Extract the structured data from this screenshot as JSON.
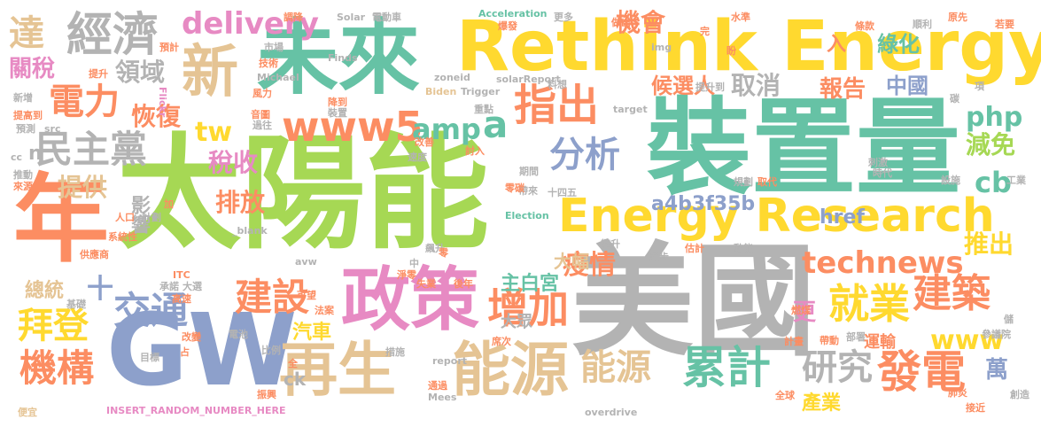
{
  "palette": {
    "green": "#a6d854",
    "teal": "#66c2a5",
    "orange": "#fc8d62",
    "blue": "#8da0cb",
    "pink": "#e78ac3",
    "yellow": "#ffd92f",
    "tan": "#e5c494",
    "gray": "#b3b3b3"
  },
  "words": [
    {
      "text": "太陽能",
      "color": "green"
    },
    {
      "text": "美國",
      "color": "gray"
    },
    {
      "text": "裝置量",
      "color": "teal"
    },
    {
      "text": "年",
      "color": "orange"
    },
    {
      "text": "GW",
      "color": "blue"
    },
    {
      "text": "未來",
      "color": "teal"
    },
    {
      "text": "Rethink Energy",
      "color": "yellow"
    },
    {
      "text": "政策",
      "color": "pink"
    },
    {
      "text": "新",
      "color": "tan"
    },
    {
      "text": "Energy Research",
      "color": "yellow"
    },
    {
      "text": "再生",
      "color": "tan"
    },
    {
      "text": "能源",
      "color": "tan"
    },
    {
      "text": "經濟",
      "color": "gray"
    },
    {
      "text": "指出",
      "color": "orange"
    },
    {
      "text": "增加",
      "color": "orange"
    },
    {
      "text": "累計",
      "color": "teal"
    },
    {
      "text": "發電",
      "color": "orange"
    },
    {
      "text": "就業",
      "color": "yellow"
    },
    {
      "text": "建築",
      "color": "orange"
    },
    {
      "text": "www5",
      "color": "orange"
    },
    {
      "text": "民主黨",
      "color": "gray"
    },
    {
      "text": "交通",
      "color": "blue"
    },
    {
      "text": "機構",
      "color": "orange"
    },
    {
      "text": "拜登",
      "color": "yellow"
    },
    {
      "text": "建設",
      "color": "orange"
    },
    {
      "text": "能源",
      "color": "tan"
    },
    {
      "text": "研究",
      "color": "gray"
    },
    {
      "text": "分析",
      "color": "blue"
    },
    {
      "text": "technews",
      "color": "orange"
    },
    {
      "text": "delivery",
      "color": "pink"
    },
    {
      "text": "達",
      "color": "tan"
    },
    {
      "text": "電力",
      "color": "orange"
    },
    {
      "text": "amp",
      "color": "teal"
    },
    {
      "text": "a",
      "color": "teal"
    },
    {
      "text": "php",
      "color": "teal"
    },
    {
      "text": "www",
      "color": "yellow"
    },
    {
      "text": "cb",
      "color": "teal"
    },
    {
      "text": "領域",
      "color": "gray"
    },
    {
      "text": "tw",
      "color": "yellow"
    },
    {
      "text": "稅收",
      "color": "pink"
    },
    {
      "text": "排放",
      "color": "orange"
    },
    {
      "text": "提供",
      "color": "tan"
    },
    {
      "text": "恢復",
      "color": "orange"
    },
    {
      "text": "疫情",
      "color": "orange"
    },
    {
      "text": "機會",
      "color": "orange"
    },
    {
      "text": "取消",
      "color": "gray"
    },
    {
      "text": "報告",
      "color": "orange"
    },
    {
      "text": "候選人",
      "color": "orange"
    },
    {
      "text": "中國",
      "color": "blue"
    },
    {
      "text": "綠化",
      "color": "teal"
    },
    {
      "text": "減免",
      "color": "green"
    },
    {
      "text": "推出",
      "color": "yellow"
    },
    {
      "text": "關稅",
      "color": "pink"
    },
    {
      "text": "a4b3f35b",
      "color": "blue"
    },
    {
      "text": "主白宮",
      "color": "teal"
    },
    {
      "text": "汽車",
      "color": "yellow"
    },
    {
      "text": "大眾",
      "color": "gray"
    },
    {
      "text": "運輸",
      "color": "orange"
    },
    {
      "text": "總統",
      "color": "tan"
    },
    {
      "text": "影響",
      "color": "gray"
    },
    {
      "text": "大幅",
      "color": "tan"
    },
    {
      "text": "更",
      "color": "pink"
    },
    {
      "text": "萬",
      "color": "blue"
    },
    {
      "text": "產業",
      "color": "yellow"
    },
    {
      "text": "href",
      "color": "blue"
    },
    {
      "text": "入",
      "color": "orange"
    },
    {
      "text": "ck",
      "color": "gray"
    },
    {
      "text": "十",
      "color": "blue"
    },
    {
      "text": "n",
      "color": "gray"
    },
    {
      "text": "INSERT_RANDOM_NUMBER_HERE",
      "color": "pink"
    },
    {
      "text": "overdrive",
      "color": "gray"
    },
    {
      "text": "Acceleration",
      "color": "teal"
    },
    {
      "text": "Solar",
      "color": "gray"
    },
    {
      "text": "電動車",
      "color": "gray"
    },
    {
      "text": "Finds",
      "color": "gray"
    },
    {
      "text": "Michael",
      "color": "gray"
    },
    {
      "text": "zoneid",
      "color": "gray"
    },
    {
      "text": "solarReport",
      "color": "gray"
    },
    {
      "text": "Trigger",
      "color": "gray"
    },
    {
      "text": "Biden",
      "color": "tan"
    },
    {
      "text": "Election",
      "color": "teal"
    },
    {
      "text": "Mees",
      "color": "gray"
    },
    {
      "text": "report",
      "color": "gray"
    },
    {
      "text": "target",
      "color": "gray"
    },
    {
      "text": "Flickr",
      "color": "pink"
    },
    {
      "text": "img",
      "color": "gray"
    },
    {
      "text": "avw",
      "color": "gray"
    },
    {
      "text": "ITC",
      "color": "orange"
    },
    {
      "text": "src",
      "color": "gray"
    },
    {
      "text": "_blank",
      "color": "gray"
    },
    {
      "text": "cc",
      "color": "gray"
    },
    {
      "text": "十四五",
      "color": "gray"
    },
    {
      "text": "調降",
      "color": "orange"
    },
    {
      "text": "預計",
      "color": "orange"
    },
    {
      "text": "市場",
      "color": "gray"
    },
    {
      "text": "技術",
      "color": "orange"
    },
    {
      "text": "爆發",
      "color": "orange"
    },
    {
      "text": "更多",
      "color": "gray"
    },
    {
      "text": "做出",
      "color": "orange"
    },
    {
      "text": "完",
      "color": "orange"
    },
    {
      "text": "水準",
      "color": "orange"
    },
    {
      "text": "條款",
      "color": "orange"
    },
    {
      "text": "原先",
      "color": "orange"
    },
    {
      "text": "若要",
      "color": "orange"
    },
    {
      "text": "順利",
      "color": "gray"
    },
    {
      "text": "項",
      "color": "gray"
    },
    {
      "text": "盼",
      "color": "orange"
    },
    {
      "text": "提升",
      "color": "orange"
    },
    {
      "text": "提升到",
      "color": "gray"
    },
    {
      "text": "新增",
      "color": "gray"
    },
    {
      "text": "提高到",
      "color": "orange"
    },
    {
      "text": "預測",
      "color": "gray"
    },
    {
      "text": "推動",
      "color": "gray"
    },
    {
      "text": "來源",
      "color": "orange"
    },
    {
      "text": "人口",
      "color": "orange"
    },
    {
      "text": "計劃",
      "color": "gray"
    },
    {
      "text": "加",
      "color": "orange"
    },
    {
      "text": "系統性",
      "color": "orange"
    },
    {
      "text": "供應商",
      "color": "orange"
    },
    {
      "text": "承諾",
      "color": "gray"
    },
    {
      "text": "基礎",
      "color": "gray"
    },
    {
      "text": "大選",
      "color": "gray"
    },
    {
      "text": "高速",
      "color": "orange"
    },
    {
      "text": "可望",
      "color": "orange"
    },
    {
      "text": "法案",
      "color": "orange"
    },
    {
      "text": "電池",
      "color": "gray"
    },
    {
      "text": "改變",
      "color": "orange"
    },
    {
      "text": "占",
      "color": "orange"
    },
    {
      "text": "目標",
      "color": "gray"
    },
    {
      "text": "比例",
      "color": "gray"
    },
    {
      "text": "全",
      "color": "orange"
    },
    {
      "text": "振興",
      "color": "orange"
    },
    {
      "text": "便宜",
      "color": "tan"
    },
    {
      "text": "通過",
      "color": "orange"
    },
    {
      "text": "措施",
      "color": "gray"
    },
    {
      "text": "席次",
      "color": "orange"
    },
    {
      "text": "淨零",
      "color": "orange"
    },
    {
      "text": "失業",
      "color": "orange"
    },
    {
      "text": "後年",
      "color": "orange"
    },
    {
      "text": "全球",
      "color": "orange"
    },
    {
      "text": "肺炎",
      "color": "orange"
    },
    {
      "text": "接近",
      "color": "orange"
    },
    {
      "text": "創造",
      "color": "gray"
    },
    {
      "text": "部署",
      "color": "gray"
    },
    {
      "text": "參議院",
      "color": "gray"
    },
    {
      "text": "儲",
      "color": "gray"
    },
    {
      "text": "帶動",
      "color": "orange"
    },
    {
      "text": "計畫",
      "color": "orange"
    },
    {
      "text": "燃煤",
      "color": "orange"
    },
    {
      "text": "動能",
      "color": "gray"
    },
    {
      "text": "估計",
      "color": "orange"
    },
    {
      "text": "讓步",
      "color": "gray"
    },
    {
      "text": "攀升",
      "color": "gray"
    },
    {
      "text": "規劃",
      "color": "gray"
    },
    {
      "text": "取代",
      "color": "orange"
    },
    {
      "text": "時代",
      "color": "gray"
    },
    {
      "text": "設施",
      "color": "gray"
    },
    {
      "text": "工業",
      "color": "gray"
    },
    {
      "text": "刺激",
      "color": "gray"
    },
    {
      "text": "碳",
      "color": "gray"
    },
    {
      "text": "風力",
      "color": "orange"
    },
    {
      "text": "音圖",
      "color": "orange"
    },
    {
      "text": "過往",
      "color": "gray"
    },
    {
      "text": "裝置",
      "color": "gray"
    },
    {
      "text": "降到",
      "color": "orange"
    },
    {
      "text": "重點",
      "color": "gray"
    },
    {
      "text": "料想",
      "color": "gray"
    },
    {
      "text": "改善",
      "color": "orange"
    },
    {
      "text": "速度",
      "color": "gray"
    },
    {
      "text": "討入",
      "color": "orange"
    },
    {
      "text": "期間",
      "color": "gray"
    },
    {
      "text": "帶來",
      "color": "gray"
    },
    {
      "text": "零碳",
      "color": "orange"
    },
    {
      "text": "飆升",
      "color": "gray"
    },
    {
      "text": "中",
      "color": "gray"
    },
    {
      "text": "零",
      "color": "orange"
    }
  ]
}
